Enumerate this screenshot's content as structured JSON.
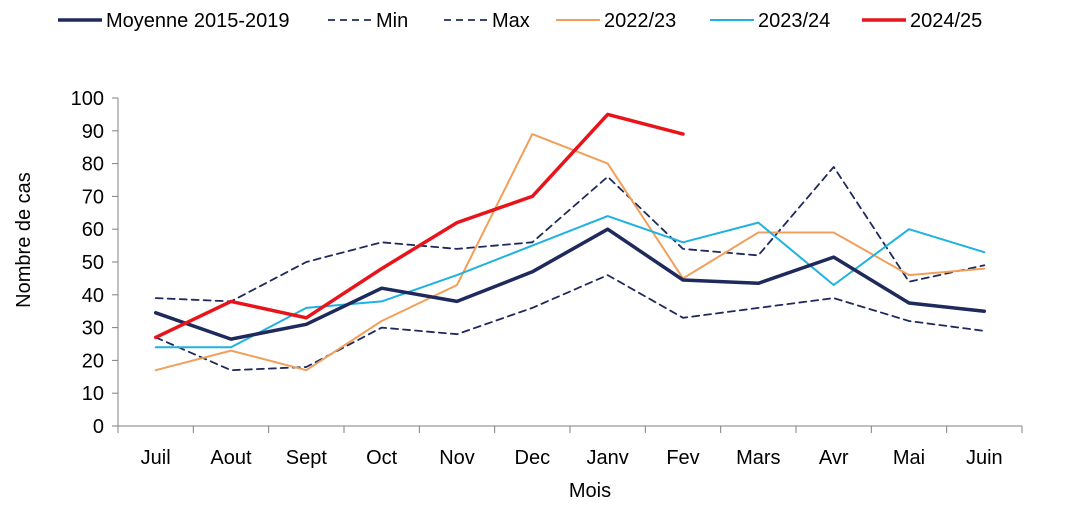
{
  "chart_data": {
    "type": "line",
    "title": "",
    "xlabel": "Mois",
    "ylabel": "Nombre de cas",
    "categories": [
      "Juil",
      "Aout",
      "Sept",
      "Oct",
      "Nov",
      "Dec",
      "Janv",
      "Fev",
      "Mars",
      "Avr",
      "Mai",
      "Juin"
    ],
    "ylim": [
      0,
      100
    ],
    "yticks": [
      0,
      10,
      20,
      30,
      40,
      50,
      60,
      70,
      80,
      90,
      100
    ],
    "grid": false,
    "legend_position": "top",
    "series": [
      {
        "name": "Moyenne 2015-2019",
        "color": "#1f2a5c",
        "style": "solid-thick",
        "values": [
          34.5,
          26.5,
          31,
          42,
          38,
          47,
          60,
          44.5,
          43.5,
          51.5,
          37.5,
          35
        ]
      },
      {
        "name": "Min",
        "color": "#1f2a5c",
        "style": "dashed",
        "values": [
          27,
          17,
          18,
          30,
          28,
          36,
          46,
          33,
          36,
          39,
          32,
          29
        ]
      },
      {
        "name": "Max",
        "color": "#1f2a5c",
        "style": "dashed",
        "values": [
          39,
          38,
          50,
          56,
          54,
          56,
          76,
          54,
          52,
          79,
          44,
          49
        ]
      },
      {
        "name": "2022/23",
        "color": "#f0a05a",
        "style": "solid",
        "values": [
          17,
          23,
          17,
          32,
          43,
          89,
          80,
          45,
          59,
          59,
          46,
          48
        ]
      },
      {
        "name": "2023/24",
        "color": "#1fb2e0",
        "style": "solid",
        "values": [
          24,
          24,
          36,
          38,
          46,
          55,
          64,
          56,
          62,
          43,
          60,
          53
        ]
      },
      {
        "name": "2024/25",
        "color": "#e8141c",
        "style": "solid-thick",
        "values": [
          27,
          38,
          33,
          48,
          62,
          70,
          95,
          89,
          null,
          null,
          null,
          null
        ]
      }
    ]
  }
}
